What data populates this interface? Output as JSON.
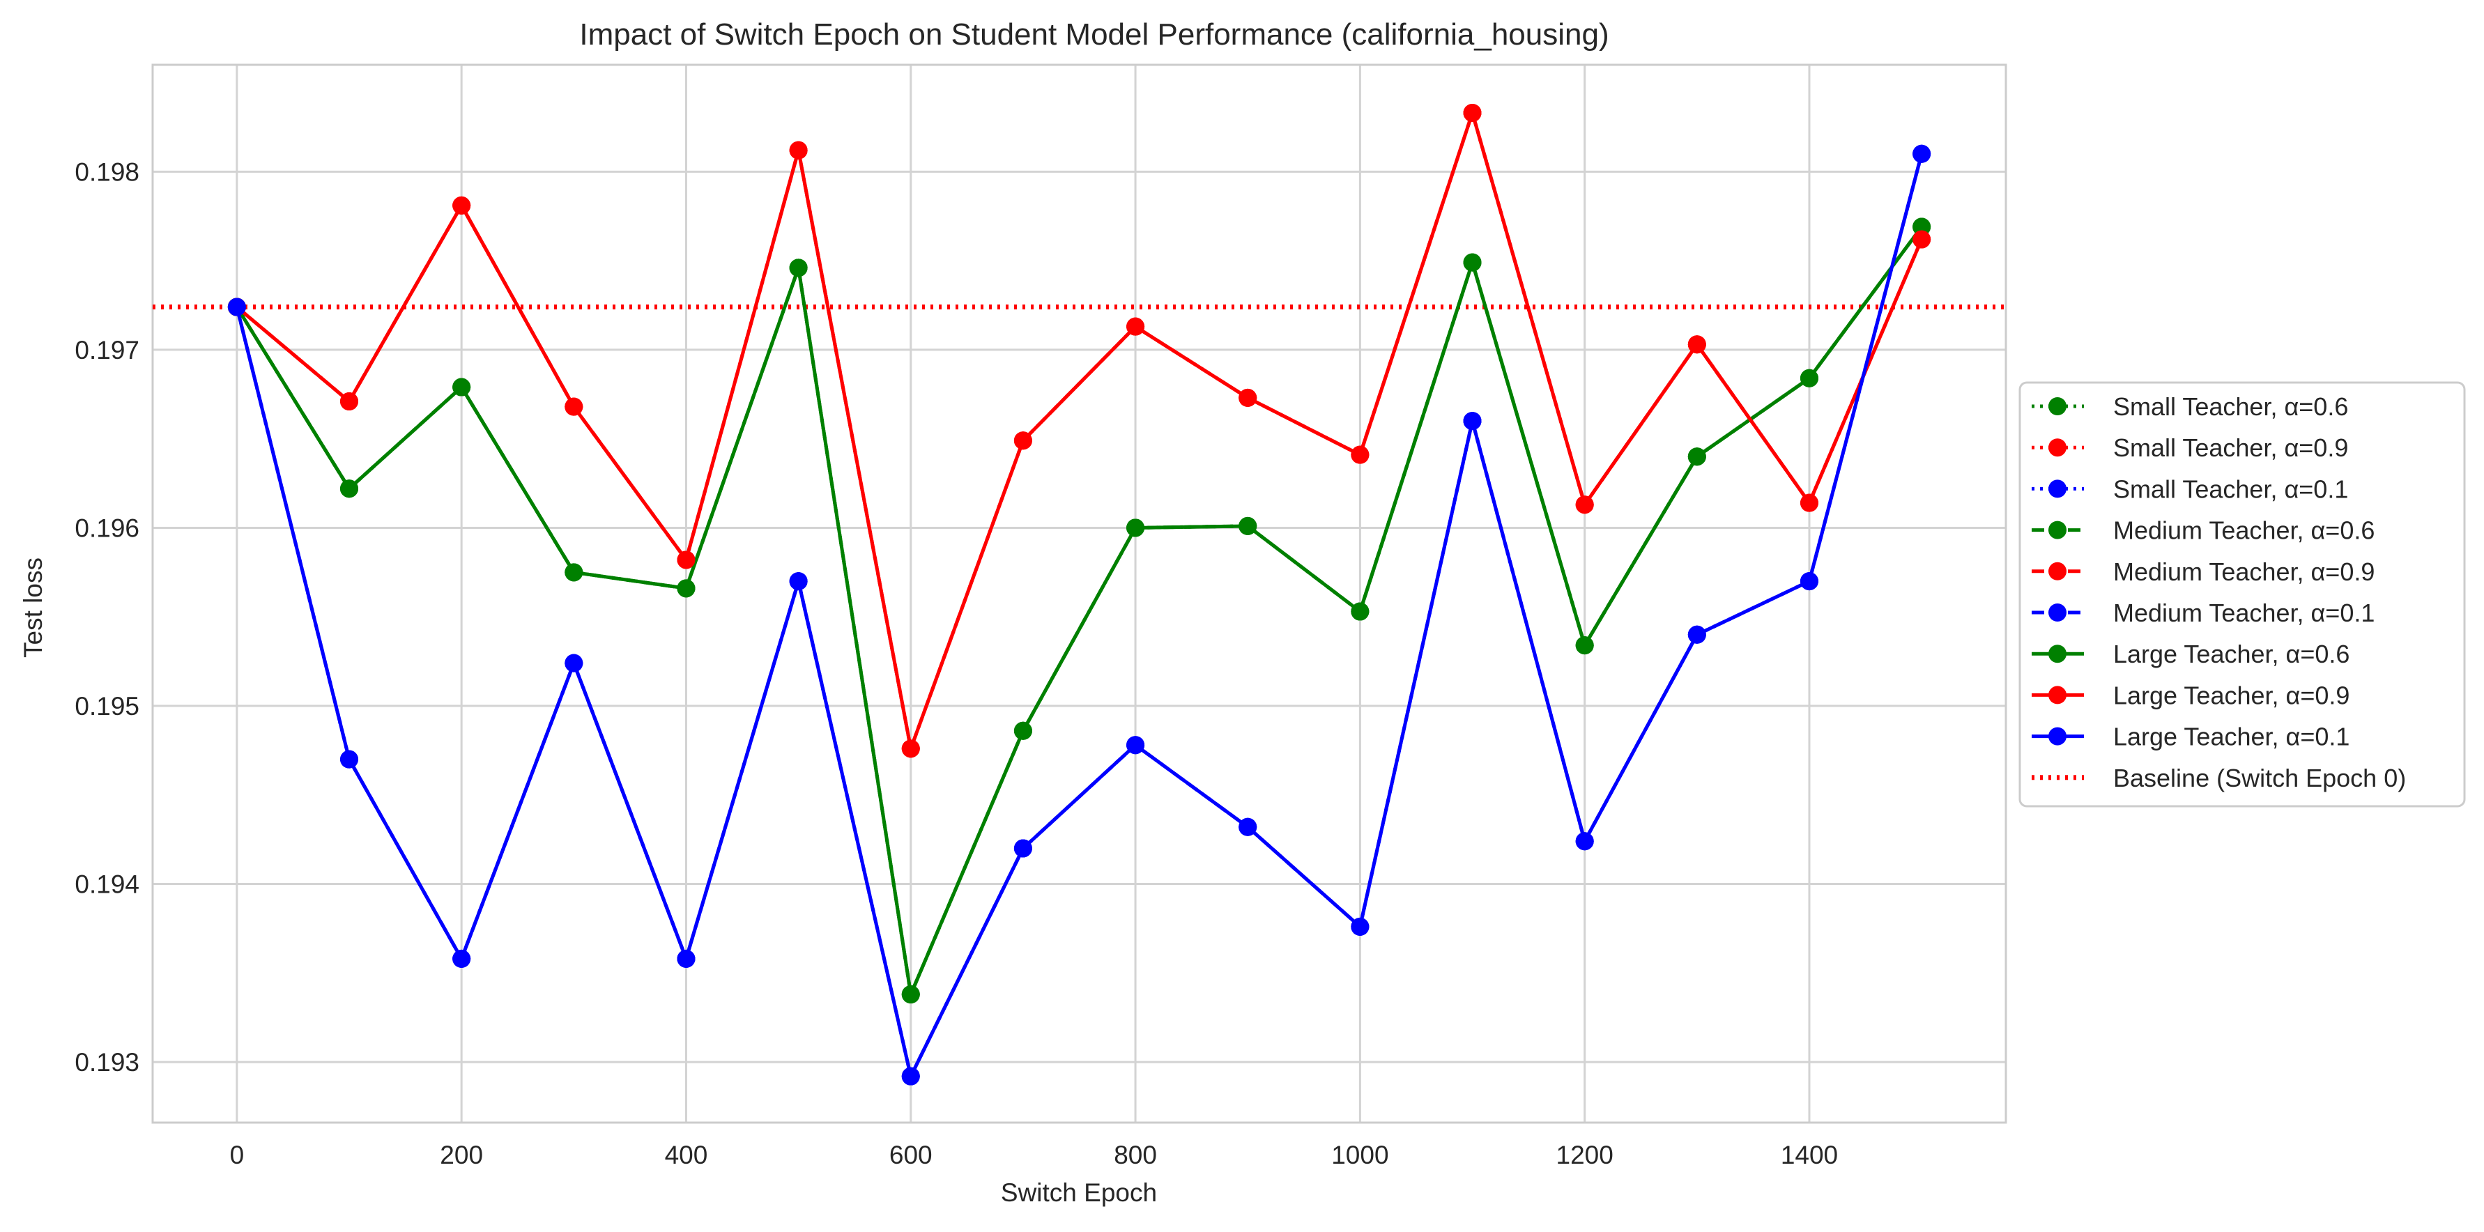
{
  "chart_data": {
    "type": "line",
    "title": "Impact of Switch Epoch on Student Model Performance (california_housing)",
    "xlabel": "Switch Epoch",
    "ylabel": "Test loss",
    "x": [
      0,
      100,
      200,
      300,
      400,
      500,
      600,
      700,
      800,
      900,
      1000,
      1100,
      1200,
      1300,
      1400,
      1500
    ],
    "xlim": [
      -75,
      1575
    ],
    "ylim": [
      0.19266,
      0.1986
    ],
    "xticks": [
      0,
      200,
      400,
      600,
      800,
      1000,
      1200,
      1400
    ],
    "xtick_labels": [
      "0",
      "200",
      "400",
      "600",
      "800",
      "1000",
      "1200",
      "1400"
    ],
    "yticks": [
      0.193,
      0.194,
      0.195,
      0.196,
      0.197,
      0.198
    ],
    "ytick_labels": [
      "0.193",
      "0.194",
      "0.195",
      "0.196",
      "0.197",
      "0.198"
    ],
    "grid": true,
    "legend_position": "right, outside plot",
    "colors": {
      "green": "#008000",
      "red": "#ff0000",
      "blue": "#0000ff",
      "grid": "#d3d3d3",
      "axes_edge": "#cccccc"
    },
    "series": [
      {
        "name": "Small Teacher, α=0.6",
        "color": "#008000",
        "linestyle": "dotted",
        "marker": "circle",
        "values": [
          0.19724,
          0.19622,
          0.19679,
          0.19575,
          0.19566,
          0.19746,
          0.19338,
          0.19486,
          0.196,
          0.19601,
          0.19553,
          0.19749,
          0.19534,
          0.1964,
          0.19684,
          0.19769
        ]
      },
      {
        "name": "Small Teacher, α=0.9",
        "color": "#ff0000",
        "linestyle": "dotted",
        "marker": "circle",
        "values": [
          0.19724,
          0.19671,
          0.19781,
          0.19668,
          0.19582,
          0.19812,
          0.19476,
          0.19649,
          0.19713,
          0.19673,
          0.19641,
          0.19833,
          0.19613,
          0.19703,
          0.19614,
          0.19762
        ]
      },
      {
        "name": "Small Teacher, α=0.1",
        "color": "#0000ff",
        "linestyle": "dotted",
        "marker": "circle",
        "values": [
          0.19724,
          0.1947,
          0.19358,
          0.19524,
          0.19358,
          0.1957,
          0.19292,
          0.1942,
          0.19478,
          0.19432,
          0.19376,
          0.1966,
          0.19424,
          0.1954,
          0.1957,
          0.1981
        ]
      },
      {
        "name": "Medium Teacher, α=0.6",
        "color": "#008000",
        "linestyle": "dashed",
        "marker": "circle",
        "values": [
          0.19724,
          0.19622,
          0.19679,
          0.19575,
          0.19566,
          0.19746,
          0.19338,
          0.19486,
          0.196,
          0.19601,
          0.19553,
          0.19749,
          0.19534,
          0.1964,
          0.19684,
          0.19769
        ]
      },
      {
        "name": "Medium Teacher, α=0.9",
        "color": "#ff0000",
        "linestyle": "dashed",
        "marker": "circle",
        "values": [
          0.19724,
          0.19671,
          0.19781,
          0.19668,
          0.19582,
          0.19812,
          0.19476,
          0.19649,
          0.19713,
          0.19673,
          0.19641,
          0.19833,
          0.19613,
          0.19703,
          0.19614,
          0.19762
        ]
      },
      {
        "name": "Medium Teacher, α=0.1",
        "color": "#0000ff",
        "linestyle": "dashed",
        "marker": "circle",
        "values": [
          0.19724,
          0.1947,
          0.19358,
          0.19524,
          0.19358,
          0.1957,
          0.19292,
          0.1942,
          0.19478,
          0.19432,
          0.19376,
          0.1966,
          0.19424,
          0.1954,
          0.1957,
          0.1981
        ]
      },
      {
        "name": "Large Teacher, α=0.6",
        "color": "#008000",
        "linestyle": "solid",
        "marker": "circle",
        "values": [
          0.19724,
          0.19622,
          0.19679,
          0.19575,
          0.19566,
          0.19746,
          0.19338,
          0.19486,
          0.196,
          0.19601,
          0.19553,
          0.19749,
          0.19534,
          0.1964,
          0.19684,
          0.19769
        ]
      },
      {
        "name": "Large Teacher, α=0.9",
        "color": "#ff0000",
        "linestyle": "solid",
        "marker": "circle",
        "values": [
          0.19724,
          0.19671,
          0.19781,
          0.19668,
          0.19582,
          0.19812,
          0.19476,
          0.19649,
          0.19713,
          0.19673,
          0.19641,
          0.19833,
          0.19613,
          0.19703,
          0.19614,
          0.19762
        ]
      },
      {
        "name": "Large Teacher, α=0.1",
        "color": "#0000ff",
        "linestyle": "solid",
        "marker": "circle",
        "values": [
          0.19724,
          0.1947,
          0.19358,
          0.19524,
          0.19358,
          0.1957,
          0.19292,
          0.1942,
          0.19478,
          0.19432,
          0.19376,
          0.1966,
          0.19424,
          0.1954,
          0.1957,
          0.1981
        ]
      }
    ],
    "baseline": {
      "name": "Baseline (Switch Epoch 0)",
      "color": "#ff0000",
      "linestyle": "dotted",
      "value": 0.19724
    }
  }
}
